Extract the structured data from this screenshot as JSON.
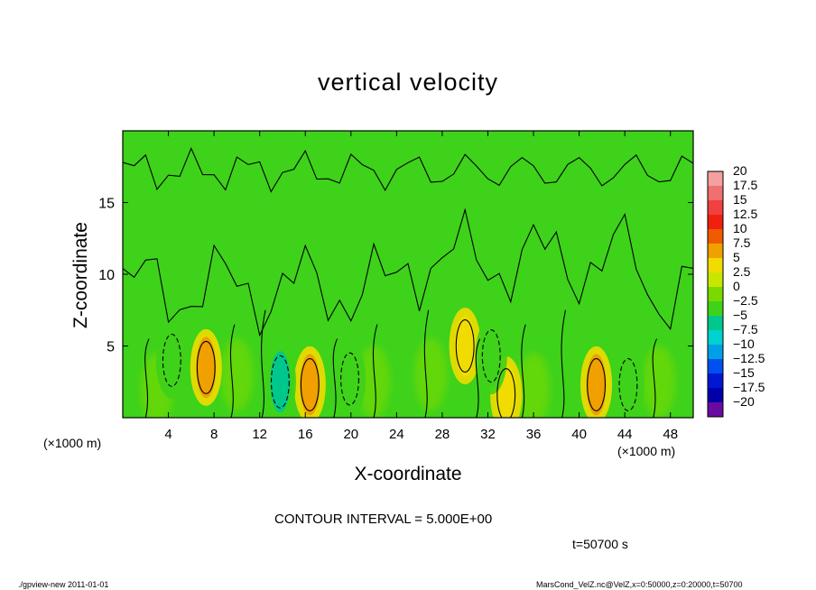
{
  "chart_data": {
    "type": "heatmap",
    "title": "vertical velocity",
    "xlabel": "X-coordinate",
    "ylabel": "Z-coordinate",
    "x_unit_label": "(×1000 m)",
    "xlim": [
      0,
      50
    ],
    "ylim": [
      0,
      20
    ],
    "x_ticks": [
      4,
      8,
      12,
      16,
      20,
      24,
      28,
      32,
      36,
      40,
      44,
      48
    ],
    "y_ticks": [
      5,
      10,
      15
    ],
    "contour_interval_text": "CONTOUR INTERVAL = 5.000E+00",
    "time_text": "t=50700 s",
    "colorbar": {
      "levels": [
        20,
        17.5,
        15,
        12.5,
        10,
        7.5,
        5,
        2.5,
        0,
        -2.5,
        -5,
        -7.5,
        -10,
        -12.5,
        -15,
        -17.5,
        -20
      ],
      "label_texts": [
        "20",
        "17.5",
        "15",
        "12.5",
        "10",
        "7.5",
        "5",
        "2.5",
        "0",
        "−2.5",
        "−5",
        "−7.5",
        "−10",
        "−12.5",
        "−15",
        "−17.5",
        "−20"
      ],
      "colors": [
        "#f5a0a0",
        "#f07070",
        "#f04040",
        "#f02010",
        "#f05a00",
        "#f0a000",
        "#f0dc00",
        "#c8e600",
        "#7ada00",
        "#3ed21a",
        "#00c88c",
        "#00d2d2",
        "#00a0e6",
        "#0050f0",
        "#0018d2",
        "#0000aa",
        "#6a0aa0"
      ]
    },
    "features": [
      {
        "kind": "updraft",
        "x": 7.3,
        "z": 3.5,
        "w": 5
      },
      {
        "kind": "updraft",
        "x": 16.4,
        "z": 2.3,
        "w": 5
      },
      {
        "kind": "updraft",
        "x": 30.0,
        "z": 5.0,
        "w": 3
      },
      {
        "kind": "updraft",
        "x": 33.6,
        "z": 1.6,
        "w": 3
      },
      {
        "kind": "updraft",
        "x": 41.5,
        "z": 2.3,
        "w": 5
      },
      {
        "kind": "downdraft",
        "x": 13.8,
        "z": 2.5,
        "w": -7.5
      },
      {
        "kind": "downdraft",
        "x": 4.3,
        "z": 4.0,
        "w": -5
      },
      {
        "kind": "downdraft",
        "x": 19.9,
        "z": 2.7,
        "w": -5
      },
      {
        "kind": "downdraft",
        "x": 32.3,
        "z": 4.3,
        "w": -5
      },
      {
        "kind": "downdraft",
        "x": 44.3,
        "z": 2.3,
        "w": -5
      }
    ]
  },
  "footer": {
    "left": "./gpview-new   2011-01-01",
    "right": "MarsCond_VelZ.nc@VelZ,x=0:50000,z=0:20000,t=50700"
  }
}
